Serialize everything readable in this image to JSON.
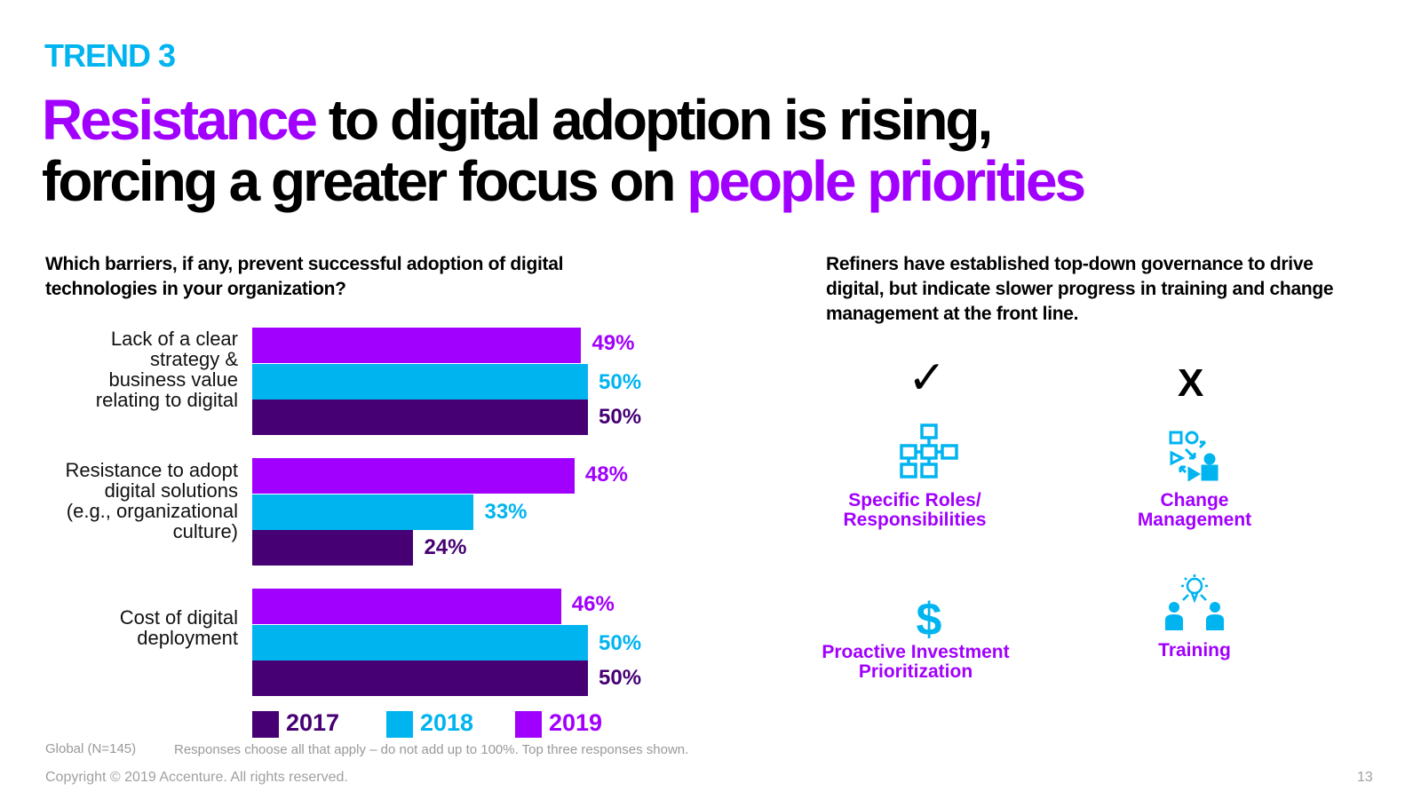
{
  "trend": "TREND 3",
  "headline": {
    "line1_accent": "Resistance",
    "line1_rest": " to digital adoption is rising,",
    "line2_rest": "forcing a greater focus on ",
    "line2_accent": "people priorities"
  },
  "left_question": "Which barriers, if any, prevent successful adoption of digital technologies in your organization?",
  "right_question": "Refiners have established top-down governance to drive digital, but indicate slower progress in training and change management at the front line.",
  "colors": {
    "c2017": "#460073",
    "c2018": "#00B4F0",
    "c2019": "#A100FF"
  },
  "chart_data": {
    "type": "bar",
    "orientation": "horizontal",
    "categories": [
      "Lack of a clear strategy & business value relating to digital",
      "Resistance to adopt digital solutions (e.g., organizational culture)",
      "Cost of digital deployment"
    ],
    "category_lines": [
      [
        "Lack of a clear",
        "strategy &",
        "business value",
        "relating to digital"
      ],
      [
        "Resistance to adopt",
        "digital solutions",
        "(e.g., organizational",
        "culture)"
      ],
      [
        "Cost of digital",
        "deployment"
      ]
    ],
    "series": [
      {
        "name": "2019",
        "values": [
          49,
          48,
          46
        ],
        "labels": [
          "49%",
          "48%",
          "46%"
        ]
      },
      {
        "name": "2018",
        "values": [
          50,
          33,
          50
        ],
        "labels": [
          "50%",
          "33%",
          "50%"
        ]
      },
      {
        "name": "2017",
        "values": [
          50,
          24,
          50
        ],
        "labels": [
          "50%",
          "24%",
          "50%"
        ]
      }
    ],
    "xlim": [
      0,
      50
    ],
    "legend": [
      "2017",
      "2018",
      "2019"
    ],
    "legend_position": "bottom"
  },
  "features": {
    "check_mark": "✓",
    "x_mark": "X",
    "roles": [
      "Specific Roles/",
      "Responsibilities"
    ],
    "change": [
      "Change",
      "Management"
    ],
    "investment": [
      "Proactive Investment",
      "Prioritization"
    ],
    "training": [
      "Training"
    ]
  },
  "footer": {
    "sample": "Global (N=145)",
    "note": "Responses choose all that apply – do not add up to 100%. Top three responses shown.",
    "copyright": "Copyright © 2019 Accenture. All rights reserved.",
    "page": "13"
  }
}
